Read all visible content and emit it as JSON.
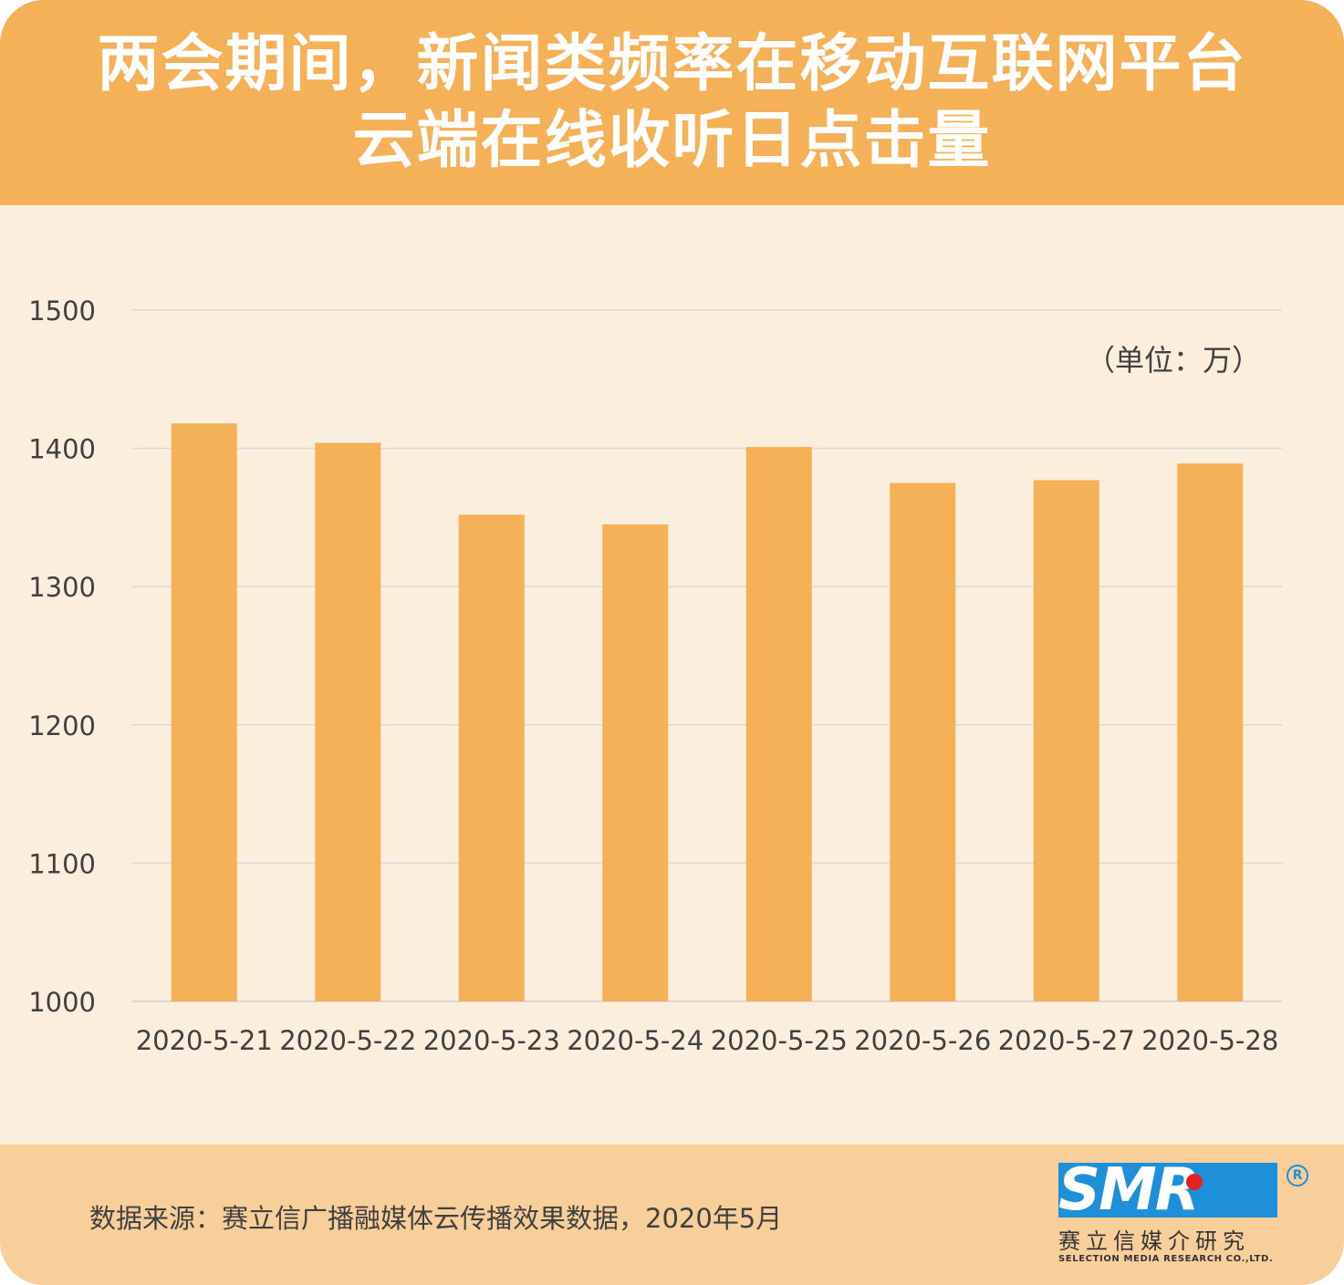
{
  "header": {
    "title_line1": "两会期间，新闻类频率在移动互联网平台",
    "title_line2": "云端在线收听日点击量"
  },
  "unit_label": "（单位：万）",
  "footer": {
    "source": "数据来源：赛立信广播融媒体云传播效果数据，2020年5月"
  },
  "logo": {
    "letters": "SMR",
    "registered": "R",
    "company_cn": "赛立信媒介研究",
    "company_en": "SELECTION MEDIA RESEARCH CO.,LTD."
  },
  "colors": {
    "header_bg": "#f5b158",
    "body_bg": "#fbeedd",
    "footer_bg": "#f8cf9a",
    "bar": "#f5b158",
    "logo_blue": "#1e90d9",
    "logo_red": "#e8201f"
  },
  "chart_data": {
    "type": "bar",
    "title": "两会期间，新闻类频率在移动互联网平台云端在线收听日点击量",
    "unit": "（单位：万）",
    "categories": [
      "2020-5-21",
      "2020-5-22",
      "2020-5-23",
      "2020-5-24",
      "2020-5-25",
      "2020-5-26",
      "2020-5-27",
      "2020-5-28"
    ],
    "values": [
      1418,
      1404,
      1352,
      1345,
      1401,
      1375,
      1377,
      1389
    ],
    "ylim": [
      1000,
      1500
    ],
    "yticks": [
      1000,
      1100,
      1200,
      1300,
      1400,
      1500
    ],
    "grid": true
  }
}
